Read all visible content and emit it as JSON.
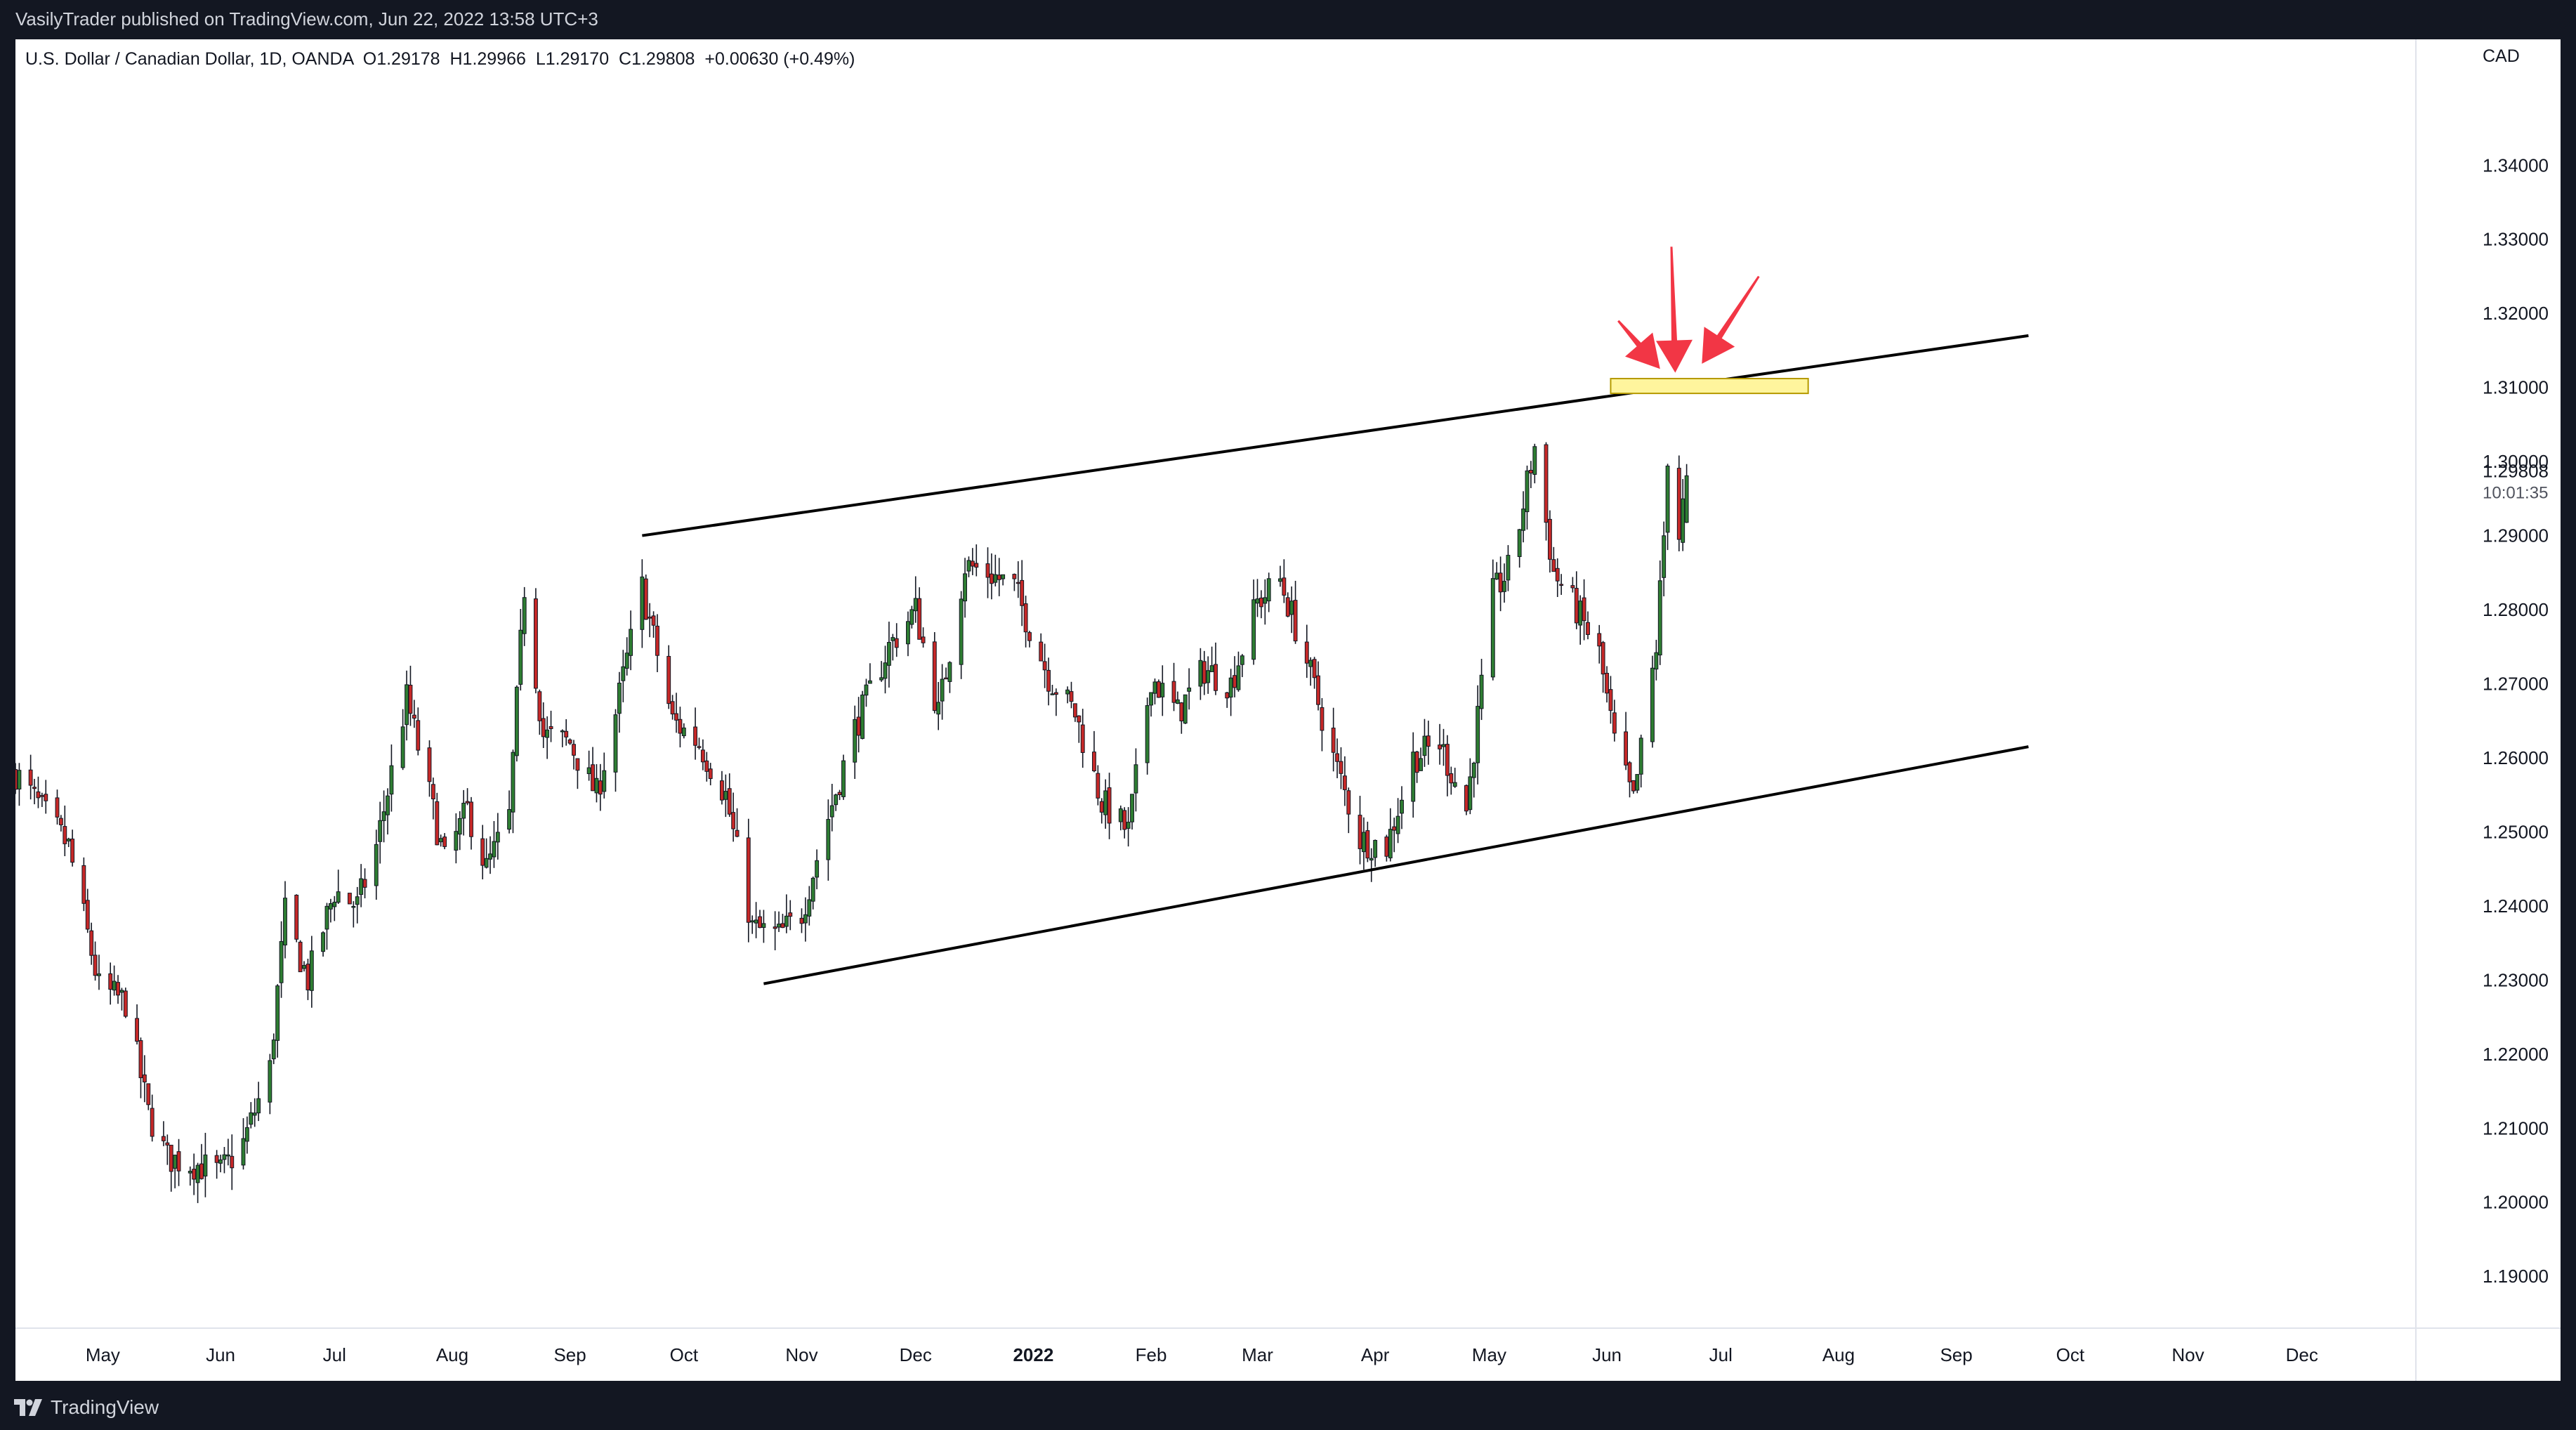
{
  "header": {
    "published_text": "VasilyTrader published on TradingView.com, Jun 22, 2022 13:58 UTC+3"
  },
  "legend": {
    "symbol_text": "U.S. Dollar / Canadian Dollar, 1D, OANDA",
    "open": "O1.29178",
    "high": "H1.29966",
    "low": "L1.29170",
    "close": "C1.29808",
    "change": "+0.00630 (+0.49%)"
  },
  "price_axis": {
    "currency": "CAD",
    "last_price_label": "1.29808",
    "countdown_label": "10:01:35"
  },
  "footer": {
    "brand": "TradingView"
  },
  "colors": {
    "up": "#2e7d32",
    "down": "#c62828",
    "wick": "#131722",
    "arrow": "#f23645",
    "zone_fill": "#fff59d",
    "zone_stroke": "#b59a00",
    "background": "#ffffff",
    "frame": "#131722"
  },
  "chart_data": {
    "type": "candlestick",
    "x_range": [
      "2021-04-08",
      "2022-12-31"
    ],
    "ylim": [
      1.183,
      1.357
    ],
    "y_ticks": [
      1.19,
      1.2,
      1.21,
      1.22,
      1.23,
      1.24,
      1.25,
      1.26,
      1.27,
      1.28,
      1.29,
      1.3,
      1.31,
      1.32,
      1.33,
      1.34
    ],
    "y_tick_labels": [
      "1.19000",
      "1.20000",
      "1.21000",
      "1.22000",
      "1.23000",
      "1.24000",
      "1.25000",
      "1.26000",
      "1.27000",
      "1.28000",
      "1.29000",
      "1.30000",
      "1.31000",
      "1.32000",
      "1.33000",
      "1.34000"
    ],
    "x_ticks": [
      {
        "label": "May",
        "date": "2021-05-01",
        "bold": false
      },
      {
        "label": "Jun",
        "date": "2021-06-01",
        "bold": false
      },
      {
        "label": "Jul",
        "date": "2021-07-01",
        "bold": false
      },
      {
        "label": "Aug",
        "date": "2021-08-01",
        "bold": false
      },
      {
        "label": "Sep",
        "date": "2021-09-01",
        "bold": false
      },
      {
        "label": "Oct",
        "date": "2021-10-01",
        "bold": false
      },
      {
        "label": "Nov",
        "date": "2021-11-01",
        "bold": false
      },
      {
        "label": "Dec",
        "date": "2021-12-01",
        "bold": false
      },
      {
        "label": "2022",
        "date": "2022-01-01",
        "bold": true
      },
      {
        "label": "Feb",
        "date": "2022-02-01",
        "bold": false
      },
      {
        "label": "Mar",
        "date": "2022-03-01",
        "bold": false
      },
      {
        "label": "Apr",
        "date": "2022-04-01",
        "bold": false
      },
      {
        "label": "May",
        "date": "2022-05-01",
        "bold": false
      },
      {
        "label": "Jun",
        "date": "2022-06-01",
        "bold": false
      },
      {
        "label": "Jul",
        "date": "2022-07-01",
        "bold": false
      },
      {
        "label": "Aug",
        "date": "2022-08-01",
        "bold": false
      },
      {
        "label": "Sep",
        "date": "2022-09-01",
        "bold": false
      },
      {
        "label": "Oct",
        "date": "2022-10-01",
        "bold": false
      },
      {
        "label": "Nov",
        "date": "2022-11-01",
        "bold": false
      },
      {
        "label": "Dec",
        "date": "2022-12-01",
        "bold": false
      }
    ],
    "first_candle_date": "2021-04-08",
    "candles_until": "2022-06-22",
    "close_path": [
      [
        "2021-04-08",
        1.258
      ],
      [
        "2021-04-15",
        1.253
      ],
      [
        "2021-04-22",
        1.248
      ],
      [
        "2021-04-30",
        1.229
      ],
      [
        "2021-05-07",
        1.227
      ],
      [
        "2021-05-13",
        1.212
      ],
      [
        "2021-05-18",
        1.206
      ],
      [
        "2021-05-26",
        1.205
      ],
      [
        "2021-06-01",
        1.204
      ],
      [
        "2021-06-07",
        1.208
      ],
      [
        "2021-06-14",
        1.218
      ],
      [
        "2021-06-18",
        1.239
      ],
      [
        "2021-06-24",
        1.23
      ],
      [
        "2021-07-01",
        1.242
      ],
      [
        "2021-07-07",
        1.24
      ],
      [
        "2021-07-12",
        1.248
      ],
      [
        "2021-07-20",
        1.268
      ],
      [
        "2021-07-26",
        1.255
      ],
      [
        "2021-07-30",
        1.246
      ],
      [
        "2021-08-05",
        1.253
      ],
      [
        "2021-08-10",
        1.245
      ],
      [
        "2021-08-16",
        1.252
      ],
      [
        "2021-08-20",
        1.283
      ],
      [
        "2021-08-25",
        1.263
      ],
      [
        "2021-09-01",
        1.262
      ],
      [
        "2021-09-08",
        1.255
      ],
      [
        "2021-09-13",
        1.266
      ],
      [
        "2021-09-20",
        1.283
      ],
      [
        "2021-09-28",
        1.265
      ],
      [
        "2021-10-05",
        1.262
      ],
      [
        "2021-10-12",
        1.255
      ],
      [
        "2021-10-19",
        1.237
      ],
      [
        "2021-10-26",
        1.236
      ],
      [
        "2021-11-01",
        1.239
      ],
      [
        "2021-11-08",
        1.252
      ],
      [
        "2021-11-15",
        1.264
      ],
      [
        "2021-11-24",
        1.275
      ],
      [
        "2021-12-01",
        1.28
      ],
      [
        "2021-12-07",
        1.266
      ],
      [
        "2021-12-14",
        1.286
      ],
      [
        "2021-12-20",
        1.285
      ],
      [
        "2021-12-27",
        1.283
      ],
      [
        "2022-01-05",
        1.271
      ],
      [
        "2022-01-12",
        1.266
      ],
      [
        "2022-01-19",
        1.254
      ],
      [
        "2022-01-26",
        1.25
      ],
      [
        "2022-02-01",
        1.271
      ],
      [
        "2022-02-08",
        1.266
      ],
      [
        "2022-02-15",
        1.272
      ],
      [
        "2022-02-22",
        1.27
      ],
      [
        "2022-03-01",
        1.281
      ],
      [
        "2022-03-07",
        1.284
      ],
      [
        "2022-03-14",
        1.273
      ],
      [
        "2022-03-21",
        1.26
      ],
      [
        "2022-03-28",
        1.249
      ],
      [
        "2022-04-04",
        1.248
      ],
      [
        "2022-04-11",
        1.26
      ],
      [
        "2022-04-18",
        1.262
      ],
      [
        "2022-04-25",
        1.253
      ],
      [
        "2022-05-02",
        1.282
      ],
      [
        "2022-05-07",
        1.286
      ],
      [
        "2022-05-11",
        1.297
      ],
      [
        "2022-05-13",
        1.302
      ],
      [
        "2022-05-18",
        1.285
      ],
      [
        "2022-05-24",
        1.28
      ],
      [
        "2022-05-30",
        1.274
      ],
      [
        "2022-06-03",
        1.262
      ],
      [
        "2022-06-08",
        1.254
      ],
      [
        "2022-06-14",
        1.275
      ],
      [
        "2022-06-16",
        1.29
      ],
      [
        "2022-06-17",
        1.301
      ],
      [
        "2022-06-20",
        1.29
      ],
      [
        "2022-06-22",
        1.29808
      ]
    ],
    "last_candle": {
      "date": "2022-06-22",
      "open": 1.29178,
      "high": 1.29966,
      "low": 1.2917,
      "close": 1.29808
    },
    "trendlines": [
      {
        "name": "upper-channel-line",
        "from": [
          "2021-09-20",
          1.29
        ],
        "to": [
          "2022-09-20",
          1.317
        ]
      },
      {
        "name": "lower-channel-line",
        "from": [
          "2021-10-22",
          1.2295
        ],
        "to": [
          "2022-09-20",
          1.2615
        ]
      }
    ],
    "zone": {
      "from": "2022-06-02",
      "to": "2022-07-24",
      "top": 1.3112,
      "bottom": 1.3092
    },
    "arrows": [
      {
        "name": "arrow-left",
        "tail": [
          "2022-06-04",
          1.319
        ],
        "tip": [
          "2022-06-15",
          1.3125
        ]
      },
      {
        "name": "arrow-middle",
        "tail": [
          "2022-06-18",
          1.329
        ],
        "tip": [
          "2022-06-19",
          1.312
        ]
      },
      {
        "name": "arrow-right",
        "tail": [
          "2022-07-11",
          1.325
        ],
        "tip": [
          "2022-06-26",
          1.3132
        ]
      }
    ]
  }
}
